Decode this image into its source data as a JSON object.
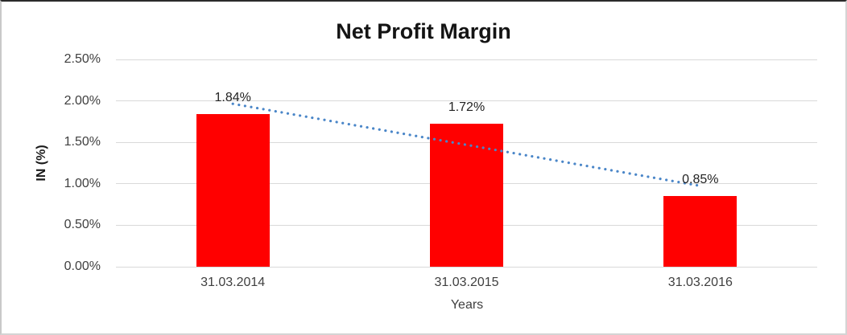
{
  "chart_data": {
    "type": "bar",
    "title": "Net Profit Margin",
    "categories": [
      "31.03.2014",
      "31.03.2015",
      "31.03.2016"
    ],
    "values": [
      1.84,
      1.72,
      0.85
    ],
    "data_labels": [
      "1.84%",
      "1.72%",
      "0.85%"
    ],
    "xlabel": "Years",
    "ylabel": "IN (%)",
    "ylim": [
      0,
      2.5
    ],
    "ytick_step": 0.5,
    "ytick_labels": [
      "0.00%",
      "0.50%",
      "1.00%",
      "1.50%",
      "2.00%",
      "2.50%"
    ],
    "grid": true,
    "legend": "none",
    "colors": {
      "bar": "#ff0000",
      "trendline": "#4a86c8",
      "gridline": "#d9d9d9",
      "title_text": "#141414",
      "axis_text": "#3f3f3f"
    },
    "trendline": {
      "kind": "linear",
      "style": "dotted"
    }
  }
}
